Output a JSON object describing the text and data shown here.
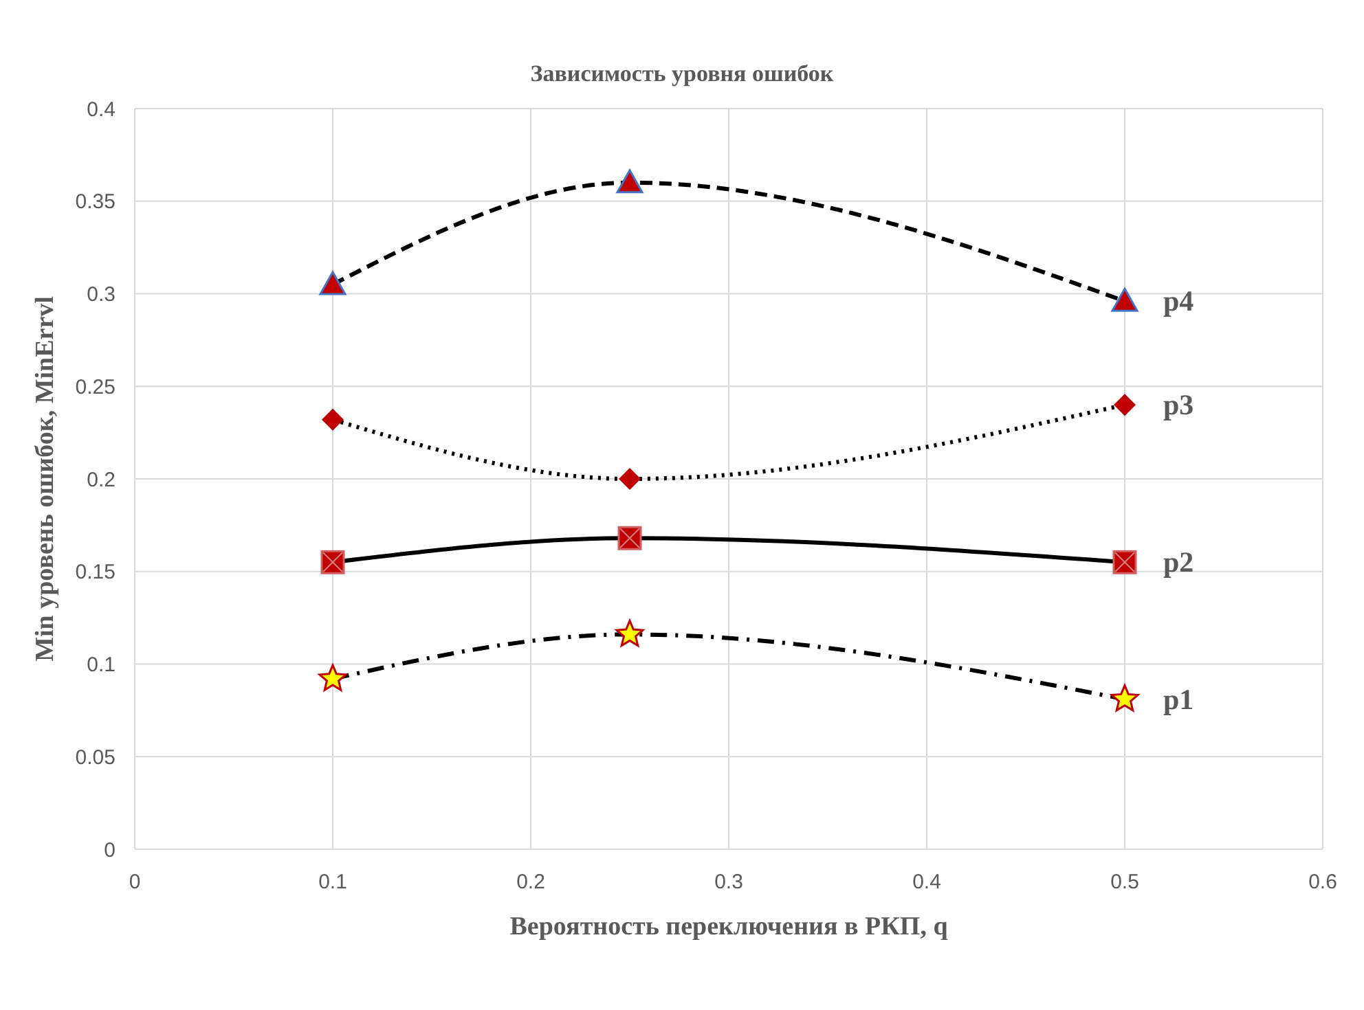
{
  "chart_data": {
    "type": "line",
    "title": "Зависимость уровня ошибок",
    "xlabel": "Вероятность переключения в РКП, q",
    "ylabel": "Min  уровень ошибок, MinErrvl",
    "x": [
      0.1,
      0.25,
      0.5
    ],
    "series": [
      {
        "name": "p1",
        "color": "#ffff00",
        "marker": "star",
        "line_style": "dashdot",
        "values": [
          0.092,
          0.116,
          0.081
        ]
      },
      {
        "name": "p2",
        "color": "#c00000",
        "marker": "square",
        "line_style": "solid",
        "values": [
          0.155,
          0.168,
          0.155
        ]
      },
      {
        "name": "p3",
        "color": "#c00000",
        "marker": "diamond",
        "line_style": "dotted",
        "values": [
          0.232,
          0.2,
          0.24
        ]
      },
      {
        "name": "p4",
        "color": "#c00000",
        "marker": "triangle",
        "line_style": "dashed",
        "values": [
          0.305,
          0.36,
          0.296
        ]
      }
    ],
    "xlim": [
      0,
      0.6
    ],
    "xticks": [
      0,
      0.1,
      0.2,
      0.3,
      0.4,
      0.5,
      0.6
    ],
    "ylim": [
      0,
      0.4
    ],
    "yticks": [
      0,
      0.05,
      0.1,
      0.15,
      0.2,
      0.25,
      0.3,
      0.35,
      0.4
    ],
    "grid": true,
    "legend": false
  }
}
